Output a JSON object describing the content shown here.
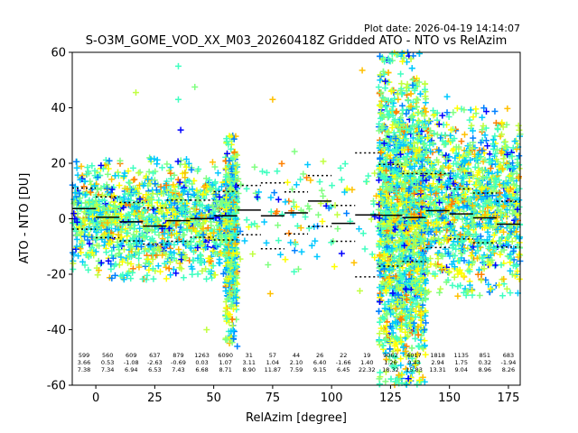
{
  "plot_date": "Plot date: 2026-04-19 14:14:07",
  "chart_data": {
    "type": "scatter",
    "title": "S-O3M_GOME_VOD_XX_M03_20260418Z Gridded ATO - NTO vs RelAzim",
    "xlabel": "RelAzim [degree]",
    "ylabel": "ATO - NTO [DU]",
    "xlim": [
      -10,
      180
    ],
    "ylim": [
      -60,
      60
    ],
    "xticks": [
      0,
      25,
      50,
      75,
      100,
      125,
      150,
      175
    ],
    "yticks": [
      -60,
      -40,
      -20,
      0,
      20,
      40,
      60
    ],
    "grid": false,
    "marker": "+",
    "colormap_colors": [
      "#0000ff",
      "#0080ff",
      "#00c8ff",
      "#40ffc0",
      "#80ff80",
      "#c0ff40",
      "#ffff00",
      "#ffc000",
      "#ff8000"
    ],
    "bins": [
      {
        "x0": -10,
        "x1": 0,
        "n": "599",
        "mean": "3.66",
        "std": "7.38",
        "label_x": -5
      },
      {
        "x0": 0,
        "x1": 10,
        "n": "560",
        "mean": "0.53",
        "std": "7.34",
        "label_x": 5
      },
      {
        "x0": 10,
        "x1": 20,
        "n": "609",
        "mean": "-1.08",
        "std": "6.94",
        "label_x": 15
      },
      {
        "x0": 20,
        "x1": 30,
        "n": "637",
        "mean": "-2.63",
        "std": "6.53",
        "label_x": 25
      },
      {
        "x0": 30,
        "x1": 40,
        "n": "879",
        "mean": "-0.69",
        "std": "7.43",
        "label_x": 35
      },
      {
        "x0": 40,
        "x1": 50,
        "n": "1263",
        "mean": "0.03",
        "std": "6.68",
        "label_x": 45
      },
      {
        "x0": 50,
        "x1": 60,
        "n": "6090",
        "mean": "1.07",
        "std": "8.71",
        "label_x": 55
      },
      {
        "x0": 60,
        "x1": 70,
        "n": "31",
        "mean": "3.11",
        "std": "8.90",
        "label_x": 65
      },
      {
        "x0": 70,
        "x1": 80,
        "n": "57",
        "mean": "1.04",
        "std": "11.87",
        "label_x": 75
      },
      {
        "x0": 80,
        "x1": 90,
        "n": "44",
        "mean": "2.10",
        "std": "7.59",
        "label_x": 85
      },
      {
        "x0": 90,
        "x1": 100,
        "n": "26",
        "mean": "6.40",
        "std": "9.15",
        "label_x": 95
      },
      {
        "x0": 100,
        "x1": 110,
        "n": "22",
        "mean": "-1.66",
        "std": "6.45",
        "label_x": 105
      },
      {
        "x0": 110,
        "x1": 120,
        "n": "19",
        "mean": "1.40",
        "std": "22.32",
        "label_x": 115
      },
      {
        "x0": 120,
        "x1": 130,
        "n": "9062",
        "mean": "1.26",
        "std": "18.32",
        "label_x": 125
      },
      {
        "x0": 130,
        "x1": 140,
        "n": "4017",
        "mean": "0.43",
        "std": "15.83",
        "label_x": 135
      },
      {
        "x0": 140,
        "x1": 150,
        "n": "1818",
        "mean": "2.94",
        "std": "13.31",
        "label_x": 145
      },
      {
        "x0": 150,
        "x1": 160,
        "n": "1135",
        "mean": "1.75",
        "std": "9.04",
        "label_x": 155
      },
      {
        "x0": 160,
        "x1": 170,
        "n": "851",
        "mean": "0.32",
        "std": "8.96",
        "label_x": 165
      },
      {
        "x0": 170,
        "x1": 180,
        "n": "683",
        "mean": "-1.94",
        "std": "8.26",
        "label_x": 175
      }
    ],
    "scatter_regions": [
      {
        "x0": -10,
        "x1": 60,
        "y0": -22,
        "y1": 22,
        "count": 1400
      },
      {
        "x0": 55,
        "x1": 60,
        "y0": -45,
        "y1": 30,
        "count": 500
      },
      {
        "x0": 60,
        "x1": 120,
        "y0": -20,
        "y1": 25,
        "count": 120
      },
      {
        "x0": 120,
        "x1": 140,
        "y0": -60,
        "y1": 60,
        "count": 2400
      },
      {
        "x0": 140,
        "x1": 180,
        "y0": -28,
        "y1": 40,
        "count": 1200
      }
    ],
    "outliers": [
      {
        "x": 35,
        "y": 55
      },
      {
        "x": 17,
        "y": 45.5
      },
      {
        "x": 42,
        "y": 47.5
      },
      {
        "x": 36,
        "y": 32
      },
      {
        "x": 113,
        "y": 53.5
      },
      {
        "x": 149,
        "y": 44
      },
      {
        "x": 75,
        "y": 43
      },
      {
        "x": 35,
        "y": 43
      },
      {
        "x": 60,
        "y": -46
      },
      {
        "x": 47,
        "y": -40
      },
      {
        "x": 112,
        "y": -26
      },
      {
        "x": 74,
        "y": -27
      }
    ]
  }
}
